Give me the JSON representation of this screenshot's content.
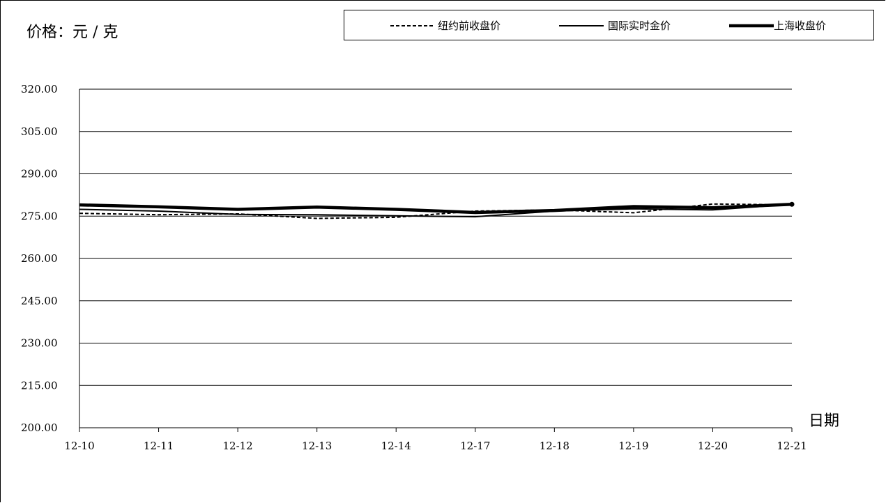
{
  "chart_data": {
    "type": "line",
    "ylabel": "价格：元 / 克",
    "xlabel": "日期",
    "categories": [
      "12-10",
      "12-11",
      "12-12",
      "12-13",
      "12-14",
      "12-17",
      "12-18",
      "12-19",
      "12-20",
      "12-21"
    ],
    "ylim": [
      200,
      320
    ],
    "yticks": [
      "200.00",
      "215.00",
      "230.00",
      "245.00",
      "260.00",
      "275.00",
      "290.00",
      "305.00",
      "320.00"
    ],
    "grid": true,
    "legend_position": "top",
    "series": [
      {
        "name": "纽约前收盘价",
        "style": "dashed",
        "values": [
          276.0,
          275.5,
          275.8,
          274.2,
          274.6,
          276.8,
          277.2,
          276.2,
          279.3,
          279.0
        ]
      },
      {
        "name": "国际实时金价",
        "style": "solid",
        "values": [
          277.4,
          276.8,
          275.6,
          275.5,
          275.1,
          274.8,
          276.8,
          277.6,
          277.2,
          279.2
        ]
      },
      {
        "name": "上海收盘价",
        "style": "thick",
        "values": [
          279.0,
          278.3,
          277.4,
          278.2,
          277.4,
          276.3,
          277.0,
          278.4,
          278.0,
          279.2
        ]
      }
    ],
    "colors": {
      "line": "#000000",
      "grid": "#000000",
      "background": "#ffffff"
    }
  }
}
